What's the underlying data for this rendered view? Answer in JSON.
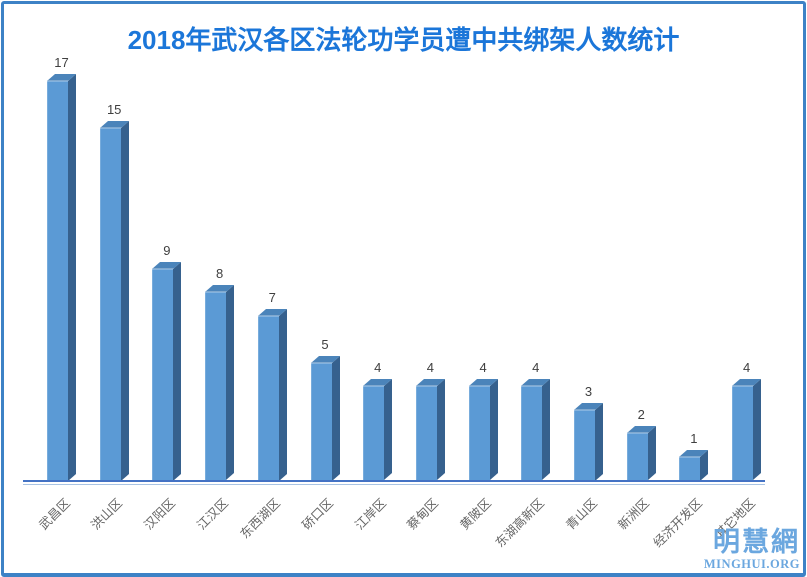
{
  "title": "2018年武汉各区法轮功学员遭中共绑架人数统计",
  "watermark": {
    "site_name_cn": "明慧網",
    "site_name_en": "MINGHUI.ORG"
  },
  "colors": {
    "title": "#1b76d9",
    "bar_front": "#5b9ad5",
    "bar_side": "#36618e",
    "bar_top": "#4b84ba",
    "axis_line": "#4472c4",
    "axis_line_light": "#a9c4e4",
    "value_label": "#3f3f3f",
    "category_label": "#666666",
    "border": "#3d82c6",
    "watermark": "#6ba7df"
  },
  "chart_data": {
    "type": "bar",
    "title": "2018年武汉各区法轮功学员遭中共绑架人数统计",
    "categories": [
      "武昌区",
      "洪山区",
      "汉阳区",
      "江汉区",
      "东西湖区",
      "硚口区",
      "江岸区",
      "蔡甸区",
      "黄陂区",
      "东湖高新区",
      "青山区",
      "新洲区",
      "经济开发区",
      "其它地区"
    ],
    "values": [
      17,
      15,
      9,
      8,
      7,
      5,
      4,
      4,
      4,
      4,
      3,
      2,
      1,
      4
    ],
    "xlabel": "",
    "ylabel": "",
    "ylim": [
      0,
      18
    ],
    "grid": false,
    "legend": false,
    "style": "3d-column",
    "data_labels": true,
    "category_label_rotation_deg": -45
  }
}
